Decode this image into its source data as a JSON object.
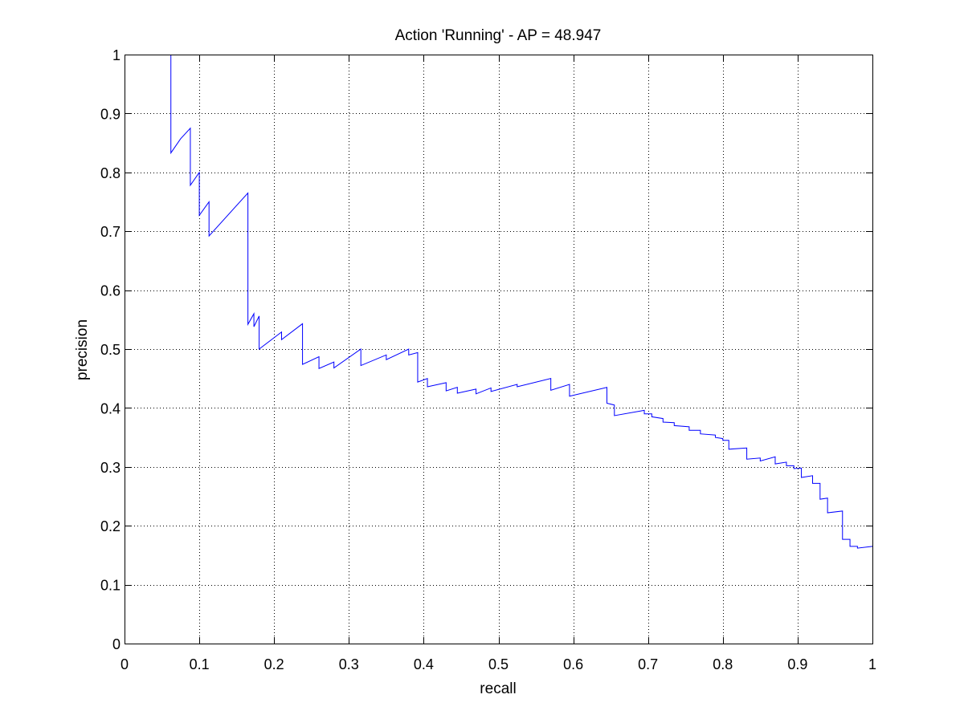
{
  "chart_data": {
    "type": "line",
    "title": "Action 'Running' - AP = 48.947",
    "xlabel": "recall",
    "ylabel": "precision",
    "xlim": [
      0,
      1
    ],
    "ylim": [
      0,
      1
    ],
    "grid": true,
    "xticks": [
      0,
      0.1,
      0.2,
      0.3,
      0.4,
      0.5,
      0.6,
      0.7,
      0.8,
      0.9,
      1
    ],
    "yticks": [
      0,
      0.1,
      0.2,
      0.3,
      0.4,
      0.5,
      0.6,
      0.7,
      0.8,
      0.9,
      1
    ],
    "xtick_labels": [
      "0",
      "0.1",
      "0.2",
      "0.3",
      "0.4",
      "0.5",
      "0.6",
      "0.7",
      "0.8",
      "0.9",
      "1"
    ],
    "ytick_labels": [
      "0",
      "0.1",
      "0.2",
      "0.3",
      "0.4",
      "0.5",
      "0.6",
      "0.7",
      "0.8",
      "0.9",
      "1"
    ],
    "series": [
      {
        "color": "#0000ff",
        "points": [
          [
            0.062,
            1.0
          ],
          [
            0.062,
            0.833
          ],
          [
            0.075,
            0.857
          ],
          [
            0.088,
            0.875
          ],
          [
            0.088,
            0.778
          ],
          [
            0.1,
            0.8
          ],
          [
            0.1,
            0.727
          ],
          [
            0.113,
            0.75
          ],
          [
            0.113,
            0.692
          ],
          [
            0.165,
            0.765
          ],
          [
            0.165,
            0.542
          ],
          [
            0.173,
            0.56
          ],
          [
            0.173,
            0.538
          ],
          [
            0.18,
            0.556
          ],
          [
            0.18,
            0.5
          ],
          [
            0.21,
            0.529
          ],
          [
            0.21,
            0.516
          ],
          [
            0.238,
            0.543
          ],
          [
            0.238,
            0.474
          ],
          [
            0.26,
            0.487
          ],
          [
            0.26,
            0.467
          ],
          [
            0.28,
            0.478
          ],
          [
            0.28,
            0.468
          ],
          [
            0.316,
            0.5
          ],
          [
            0.316,
            0.472
          ],
          [
            0.35,
            0.49
          ],
          [
            0.35,
            0.482
          ],
          [
            0.38,
            0.5
          ],
          [
            0.38,
            0.49
          ],
          [
            0.392,
            0.494
          ],
          [
            0.392,
            0.444
          ],
          [
            0.405,
            0.45
          ],
          [
            0.405,
            0.436
          ],
          [
            0.43,
            0.443
          ],
          [
            0.43,
            0.429
          ],
          [
            0.445,
            0.435
          ],
          [
            0.445,
            0.425
          ],
          [
            0.47,
            0.432
          ],
          [
            0.47,
            0.424
          ],
          [
            0.49,
            0.434
          ],
          [
            0.49,
            0.428
          ],
          [
            0.525,
            0.44
          ],
          [
            0.525,
            0.436
          ],
          [
            0.57,
            0.45
          ],
          [
            0.57,
            0.43
          ],
          [
            0.595,
            0.44
          ],
          [
            0.595,
            0.42
          ],
          [
            0.645,
            0.435
          ],
          [
            0.645,
            0.408
          ],
          [
            0.655,
            0.405
          ],
          [
            0.655,
            0.387
          ],
          [
            0.695,
            0.396
          ],
          [
            0.695,
            0.39
          ],
          [
            0.705,
            0.39
          ],
          [
            0.705,
            0.385
          ],
          [
            0.72,
            0.382
          ],
          [
            0.72,
            0.376
          ],
          [
            0.735,
            0.375
          ],
          [
            0.735,
            0.37
          ],
          [
            0.755,
            0.368
          ],
          [
            0.755,
            0.362
          ],
          [
            0.77,
            0.362
          ],
          [
            0.77,
            0.356
          ],
          [
            0.79,
            0.354
          ],
          [
            0.79,
            0.35
          ],
          [
            0.8,
            0.348
          ],
          [
            0.8,
            0.345
          ],
          [
            0.808,
            0.345
          ],
          [
            0.808,
            0.33
          ],
          [
            0.832,
            0.332
          ],
          [
            0.832,
            0.313
          ],
          [
            0.85,
            0.315
          ],
          [
            0.85,
            0.31
          ],
          [
            0.87,
            0.317
          ],
          [
            0.87,
            0.305
          ],
          [
            0.885,
            0.308
          ],
          [
            0.885,
            0.302
          ],
          [
            0.895,
            0.302
          ],
          [
            0.895,
            0.297
          ],
          [
            0.905,
            0.298
          ],
          [
            0.905,
            0.282
          ],
          [
            0.92,
            0.285
          ],
          [
            0.92,
            0.272
          ],
          [
            0.93,
            0.272
          ],
          [
            0.93,
            0.245
          ],
          [
            0.94,
            0.247
          ],
          [
            0.94,
            0.222
          ],
          [
            0.96,
            0.225
          ],
          [
            0.96,
            0.177
          ],
          [
            0.97,
            0.177
          ],
          [
            0.97,
            0.165
          ],
          [
            0.98,
            0.165
          ],
          [
            0.98,
            0.162
          ],
          [
            1.0,
            0.165
          ]
        ]
      }
    ]
  }
}
